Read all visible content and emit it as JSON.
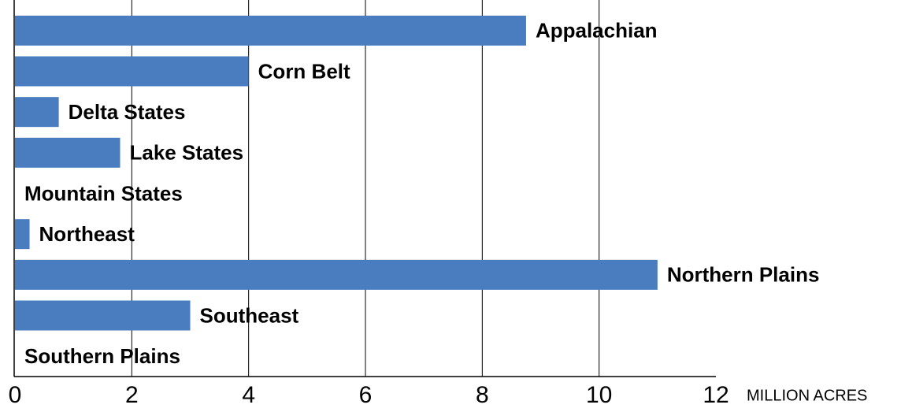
{
  "chart_data": {
    "type": "bar",
    "orientation": "horizontal",
    "x_label": "MILLION ACRES",
    "categories": [
      "Appalachian",
      "Corn Belt",
      "Delta States",
      "Lake States",
      "Mountain States",
      "Northeast",
      "Northern Plains",
      "Southeast",
      "Southern Plains"
    ],
    "values": [
      8.75,
      4.0,
      0.75,
      1.8,
      0,
      0.25,
      11.0,
      3.0,
      0
    ],
    "color": "#4a7cc0",
    "xlim": [
      0,
      12
    ],
    "xticks": [
      0,
      2,
      4,
      6,
      8,
      10,
      12
    ],
    "grid": true
  }
}
